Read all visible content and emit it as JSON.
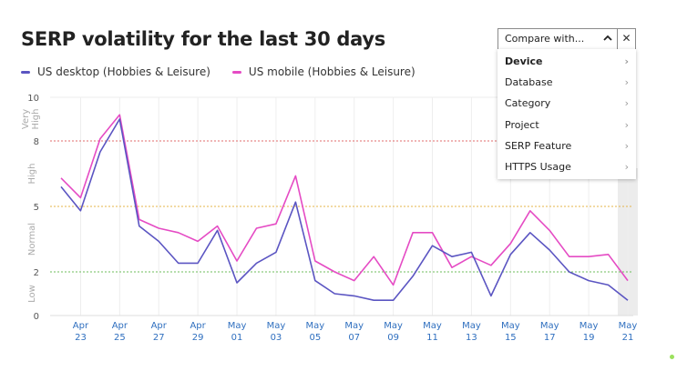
{
  "title": "SERP volatility for the last 30 days",
  "legend": [
    {
      "label": "US desktop (Hobbies & Leisure)",
      "color": "#5b55c2"
    },
    {
      "label": "US mobile (Hobbies & Leisure)",
      "color": "#e54bc4"
    }
  ],
  "compare": {
    "label": "Compare with...",
    "chevron_icon": "chevron-up-icon",
    "close_icon": "close-icon",
    "menu": [
      {
        "label": "Device",
        "active": true
      },
      {
        "label": "Database",
        "active": false
      },
      {
        "label": "Category",
        "active": false
      },
      {
        "label": "Project",
        "active": false
      },
      {
        "label": "SERP Feature",
        "active": false
      },
      {
        "label": "HTTPS Usage",
        "active": false
      }
    ]
  },
  "chart_data": {
    "type": "line",
    "ylim": [
      0,
      10
    ],
    "y_ticks": [
      "0",
      "2",
      "5",
      "8",
      "10"
    ],
    "y_tick_values": [
      0,
      2,
      5,
      8,
      10
    ],
    "zone_labels": [
      {
        "label": "Low",
        "from": 0,
        "to": 2
      },
      {
        "label": "Normal",
        "from": 2,
        "to": 5
      },
      {
        "label": "High",
        "from": 5,
        "to": 8
      },
      {
        "label": "Very High",
        "from": 8,
        "to": 10
      }
    ],
    "threshold_lines": [
      {
        "value": 8,
        "color": "#e06b6b"
      },
      {
        "value": 5,
        "color": "#e5b54a"
      },
      {
        "value": 2,
        "color": "#6cbe5b"
      }
    ],
    "x_ticks": [
      {
        "month": "Apr",
        "day": "23",
        "index": 1
      },
      {
        "month": "Apr",
        "day": "25",
        "index": 3
      },
      {
        "month": "Apr",
        "day": "27",
        "index": 5
      },
      {
        "month": "Apr",
        "day": "29",
        "index": 7
      },
      {
        "month": "May",
        "day": "01",
        "index": 9
      },
      {
        "month": "May",
        "day": "03",
        "index": 11
      },
      {
        "month": "May",
        "day": "05",
        "index": 13
      },
      {
        "month": "May",
        "day": "07",
        "index": 15
      },
      {
        "month": "May",
        "day": "09",
        "index": 17
      },
      {
        "month": "May",
        "day": "11",
        "index": 19
      },
      {
        "month": "May",
        "day": "13",
        "index": 21
      },
      {
        "month": "May",
        "day": "15",
        "index": 23
      },
      {
        "month": "May",
        "day": "17",
        "index": 25
      },
      {
        "month": "May",
        "day": "19",
        "index": 27
      },
      {
        "month": "May",
        "day": "21",
        "index": 29
      }
    ],
    "highlight_index": 29,
    "series": [
      {
        "name": "US desktop (Hobbies & Leisure)",
        "color": "#5b55c2",
        "values": [
          5.9,
          4.8,
          7.5,
          9.0,
          4.1,
          3.4,
          2.4,
          2.4,
          3.9,
          1.5,
          2.4,
          2.9,
          5.2,
          1.6,
          1.0,
          0.9,
          0.7,
          0.7,
          1.8,
          3.2,
          2.7,
          2.9,
          0.9,
          2.8,
          3.8,
          3.0,
          2.0,
          1.6,
          1.4,
          0.7
        ]
      },
      {
        "name": "US mobile (Hobbies & Leisure)",
        "color": "#e54bc4",
        "values": [
          6.3,
          5.4,
          8.1,
          9.2,
          4.4,
          4.0,
          3.8,
          3.4,
          4.1,
          2.5,
          4.0,
          4.2,
          6.4,
          2.5,
          2.0,
          1.6,
          2.7,
          1.4,
          3.8,
          3.8,
          2.2,
          2.7,
          2.3,
          3.3,
          4.8,
          3.9,
          2.7,
          2.7,
          2.8,
          1.6
        ]
      }
    ]
  }
}
